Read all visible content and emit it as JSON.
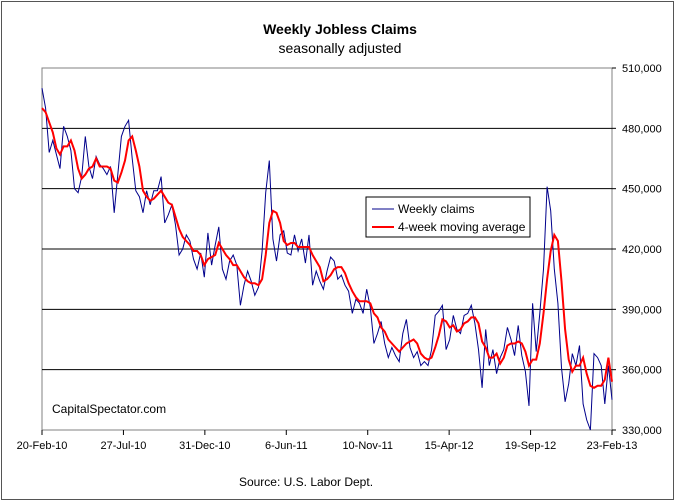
{
  "chart_data": {
    "type": "line",
    "title": "Weekly Jobless Claims",
    "subtitle": "seasonally adjusted",
    "source": "Source: U.S. Labor Dept.",
    "watermark": "CapitalSpectator.com",
    "x_tick_labels": [
      "20-Feb-10",
      "27-Jul-10",
      "31-Dec-10",
      "6-Jun-11",
      "10-Nov-11",
      "15-Apr-12",
      "19-Sep-12",
      "23-Feb-13"
    ],
    "y_tick_labels": [
      "510,000",
      "480,000",
      "450,000",
      "420,000",
      "390,000",
      "360,000",
      "330,000"
    ],
    "ylim": [
      330000,
      510000
    ],
    "grid": "horizontal",
    "legend_position": "center-right",
    "colors": {
      "weekly": "#00008b",
      "moving_average": "#ff0000",
      "grid": "#000000"
    },
    "series": [
      {
        "name": "Weekly claims",
        "values": [
          500000,
          490000,
          468000,
          474000,
          467000,
          460000,
          481000,
          476000,
          469000,
          450000,
          448000,
          456000,
          476000,
          461000,
          455000,
          466000,
          462000,
          460000,
          457000,
          461000,
          438000,
          457000,
          476000,
          481000,
          484000,
          465000,
          449000,
          446000,
          438000,
          449000,
          442000,
          449000,
          449000,
          456000,
          433000,
          437000,
          442000,
          432000,
          417000,
          420000,
          427000,
          424000,
          415000,
          410000,
          418000,
          406000,
          428000,
          412000,
          422000,
          431000,
          410000,
          405000,
          414000,
          417000,
          412000,
          392000,
          402000,
          409000,
          404000,
          397000,
          401000,
          419000,
          448000,
          464000,
          425000,
          414000,
          427000,
          429000,
          418000,
          417000,
          427000,
          419000,
          425000,
          413000,
          427000,
          402000,
          409000,
          404000,
          400000,
          409000,
          416000,
          414000,
          405000,
          407000,
          402000,
          399000,
          388000,
          395000,
          393000,
          388000,
          400000,
          391000,
          373000,
          378000,
          384000,
          373000,
          366000,
          371000,
          367000,
          364000,
          378000,
          385000,
          371000,
          366000,
          369000,
          362000,
          364000,
          362000,
          370000,
          387000,
          389000,
          392000,
          370000,
          375000,
          387000,
          380000,
          378000,
          387000,
          388000,
          392000,
          383000,
          370000,
          351000,
          380000,
          362000,
          370000,
          358000,
          366000,
          370000,
          381000,
          375000,
          367000,
          382000,
          367000,
          359000,
          342000,
          393000,
          369000,
          388000,
          410000,
          451000,
          439000,
          410000,
          393000,
          361000,
          344000,
          353000,
          368000,
          362000,
          372000,
          343000,
          335000,
          330000,
          368000,
          366000,
          362000,
          343000,
          362000,
          345000
        ]
      },
      {
        "name": "4-week moving average",
        "values": [
          490000,
          488000,
          483000,
          478000,
          470000,
          467000,
          471000,
          471000,
          474000,
          469000,
          460000,
          455000,
          457000,
          460000,
          461000,
          465000,
          461000,
          461000,
          461000,
          460000,
          454000,
          453000,
          458000,
          464000,
          474000,
          476000,
          469000,
          461000,
          449000,
          446000,
          444000,
          445000,
          447000,
          449000,
          446000,
          443000,
          442000,
          436000,
          430000,
          426000,
          424000,
          422000,
          419000,
          419000,
          417000,
          412000,
          415000,
          416000,
          417000,
          423000,
          420000,
          417000,
          415000,
          412000,
          412000,
          409000,
          406000,
          404000,
          403000,
          403000,
          402000,
          405000,
          417000,
          433000,
          439000,
          438000,
          433000,
          424000,
          422000,
          423000,
          423000,
          421000,
          421000,
          421000,
          421000,
          417000,
          414000,
          411000,
          404000,
          405000,
          407000,
          410000,
          411000,
          411000,
          408000,
          403000,
          399000,
          396000,
          394000,
          394000,
          394000,
          393000,
          388000,
          386000,
          381000,
          379000,
          375000,
          373000,
          371000,
          369000,
          371000,
          373000,
          374000,
          375000,
          373000,
          368000,
          366000,
          365000,
          366000,
          371000,
          377000,
          385000,
          384000,
          381000,
          382000,
          379000,
          380000,
          383000,
          384000,
          386000,
          386000,
          383000,
          374000,
          371000,
          366000,
          366000,
          368000,
          363000,
          366000,
          372000,
          373000,
          373000,
          374000,
          373000,
          369000,
          362000,
          365000,
          365000,
          373000,
          388000,
          405000,
          419000,
          427000,
          424000,
          404000,
          380000,
          365000,
          359000,
          362000,
          362000,
          366000,
          358000,
          352000,
          351000,
          352000,
          352000,
          355000,
          366000,
          354000
        ]
      }
    ]
  }
}
